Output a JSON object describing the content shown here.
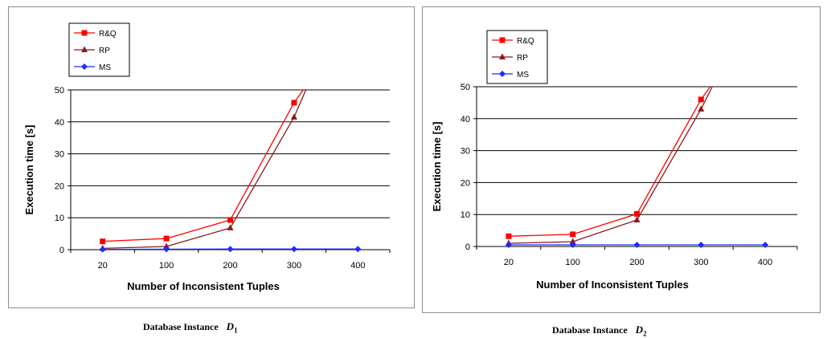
{
  "chart_data": [
    {
      "type": "line",
      "categories": [
        "20",
        "100",
        "200",
        "300",
        "400"
      ],
      "series": [
        {
          "name": "R&Q",
          "color": "#ff0000",
          "marker": "square",
          "values": [
            2.6,
            3.5,
            9.3,
            46.0,
            null
          ]
        },
        {
          "name": "RP",
          "color": "#8b1a1a",
          "marker": "triangle",
          "values": [
            0.4,
            1.0,
            6.8,
            41.5,
            null
          ]
        },
        {
          "name": "MS",
          "color": "#1f2cff",
          "marker": "diamond",
          "values": [
            0.1,
            0.15,
            0.2,
            0.2,
            0.2
          ]
        }
      ],
      "xlabel": "Number of Inconsistent Tuples",
      "ylabel": "Execution time [s]",
      "ylim": [
        0,
        50
      ],
      "yticks": [
        "0",
        "10",
        "20",
        "30",
        "40",
        "50"
      ],
      "grid": true,
      "legend": "top-left",
      "caption": "Database Instance",
      "caption_symbol": "D",
      "caption_subscript": "1"
    },
    {
      "type": "line",
      "categories": [
        "20",
        "100",
        "200",
        "300",
        "400"
      ],
      "series": [
        {
          "name": "R&Q",
          "color": "#ff0000",
          "marker": "square",
          "values": [
            3.2,
            3.8,
            10.2,
            46.0,
            null
          ]
        },
        {
          "name": "RP",
          "color": "#8b1a1a",
          "marker": "triangle",
          "values": [
            1.0,
            1.5,
            8.3,
            43.0,
            null
          ]
        },
        {
          "name": "MS",
          "color": "#1f2cff",
          "marker": "diamond",
          "values": [
            0.5,
            0.5,
            0.5,
            0.5,
            0.5
          ]
        }
      ],
      "xlabel": "Number of Inconsistent Tuples",
      "ylabel": "Execution time [s]",
      "ylim": [
        0,
        50
      ],
      "yticks": [
        "0",
        "10",
        "20",
        "30",
        "40",
        "50"
      ],
      "grid": true,
      "legend": "top-left",
      "caption": "Database Instance",
      "caption_symbol": "D",
      "caption_subscript": "2"
    }
  ]
}
